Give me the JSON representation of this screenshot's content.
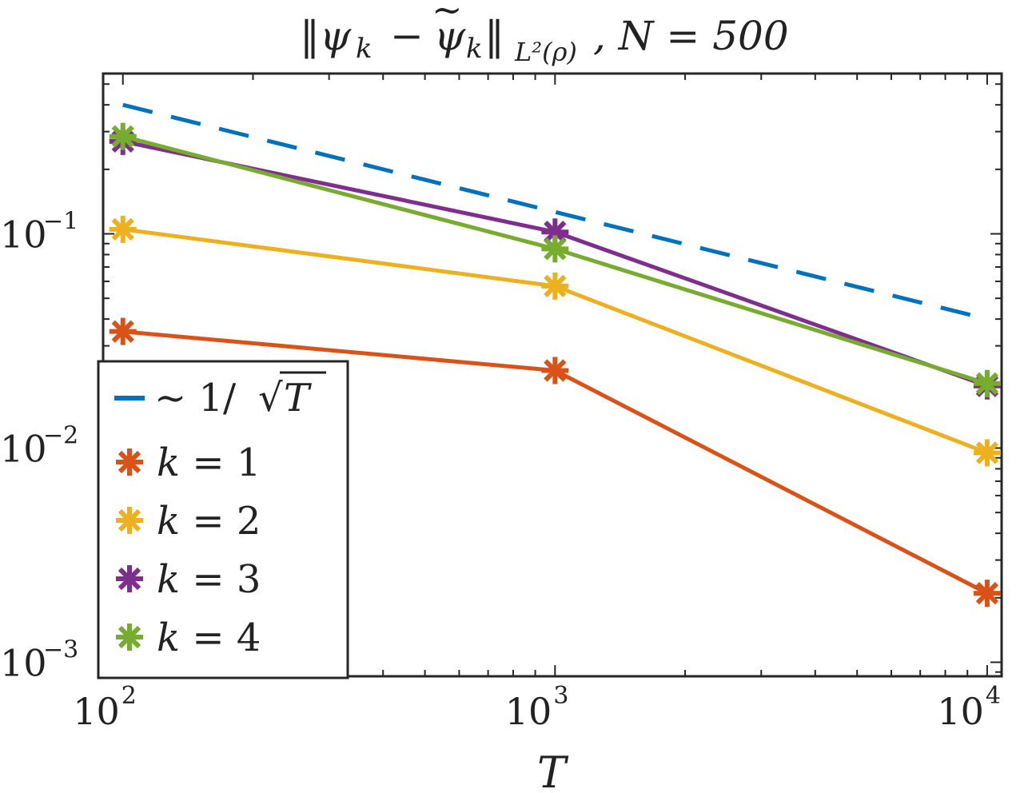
{
  "chart_data": {
    "type": "line",
    "title": "‖ψ_k − ψ̃_k‖_{L²(ρ)}, N = 500",
    "title_main": "‖ψ",
    "title_sub_k": "k",
    "title_minus": "−",
    "title_psi_tilde": "ψ",
    "title_tilde": "~",
    "title_norm_end": "‖",
    "title_subscript": "L²(ρ)",
    "title_tail": ", N = 500",
    "xlabel": "T",
    "ylabel": "",
    "xscale": "log",
    "yscale": "log",
    "xlim": [
      90,
      10800
    ],
    "ylim": [
      0.00086,
      0.56
    ],
    "x_ticks": [
      {
        "base": "10",
        "exp": "2",
        "value": 100
      },
      {
        "base": "10",
        "exp": "3",
        "value": 1000
      },
      {
        "base": "10",
        "exp": "4",
        "value": 10000
      }
    ],
    "y_ticks": [
      {
        "base": "10",
        "exp": "−3",
        "value": 0.001
      },
      {
        "base": "10",
        "exp": "−2",
        "value": 0.01
      },
      {
        "base": "10",
        "exp": "−1",
        "value": 0.1
      }
    ],
    "x": [
      100,
      1000,
      10000
    ],
    "reference": {
      "name": "∼ 1/√T",
      "label_prefix": "∼ 1/",
      "label_sqrt": "√",
      "label_var": "T",
      "x": [
        100,
        10000
      ],
      "values": [
        0.4,
        0.04
      ],
      "color": "#0072BD",
      "style": "dashed"
    },
    "series": [
      {
        "name": "k = 1",
        "label_var": "k",
        "label_rest": " = 1",
        "values": [
          0.035,
          0.023,
          0.0021
        ],
        "color": "#D95319",
        "marker": "asterisk"
      },
      {
        "name": "k = 2",
        "label_var": "k",
        "label_rest": " = 2",
        "values": [
          0.105,
          0.057,
          0.0095
        ],
        "color": "#EDB120",
        "marker": "asterisk"
      },
      {
        "name": "k = 3",
        "label_var": "k",
        "label_rest": " = 3",
        "values": [
          0.27,
          0.102,
          0.0195
        ],
        "color": "#7E2F8E",
        "marker": "asterisk"
      },
      {
        "name": "k = 4",
        "label_var": "k",
        "label_rest": " = 4",
        "values": [
          0.285,
          0.085,
          0.02
        ],
        "color": "#77AC30",
        "marker": "asterisk"
      }
    ],
    "legend_position": "bottom-left",
    "grid": false
  }
}
